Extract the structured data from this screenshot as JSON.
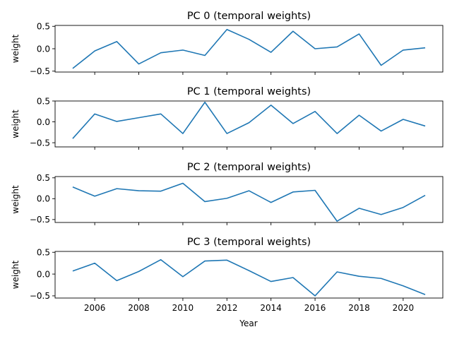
{
  "chart_data": {
    "type": "line",
    "xlabel": "Year",
    "x": [
      2005,
      2006,
      2007,
      2008,
      2009,
      2010,
      2011,
      2012,
      2013,
      2014,
      2015,
      2016,
      2017,
      2018,
      2019,
      2020,
      2021
    ],
    "xlim": [
      2004.2,
      2021.8
    ],
    "xticks": [
      2006,
      2008,
      2010,
      2012,
      2014,
      2016,
      2018,
      2020
    ],
    "xtick_labels": [
      "2006",
      "2008",
      "2010",
      "2012",
      "2014",
      "2016",
      "2018",
      "2020"
    ],
    "line_color": "#1f77b4",
    "grid": false,
    "panels": [
      {
        "title": "PC 0 (temporal weights)",
        "ylabel": "weight",
        "ylim": [
          -0.52,
          0.52
        ],
        "yticks": [
          0.5,
          0.0,
          -0.5
        ],
        "ytick_labels": [
          "0.5",
          "0.0",
          "−0.5"
        ],
        "values": [
          -0.44,
          -0.05,
          0.16,
          -0.34,
          -0.09,
          -0.03,
          -0.15,
          0.43,
          0.21,
          -0.08,
          0.39,
          0.0,
          0.04,
          0.33,
          -0.37,
          -0.03,
          0.02
        ]
      },
      {
        "title": "PC 1 (temporal weights)",
        "ylabel": "weight",
        "ylim": [
          -0.6,
          0.5
        ],
        "yticks": [
          0.5,
          0.0,
          -0.5
        ],
        "ytick_labels": [
          "0.5",
          "0.0",
          "−0.5"
        ],
        "values": [
          -0.4,
          0.19,
          0.01,
          0.1,
          0.19,
          -0.28,
          0.47,
          -0.28,
          -0.02,
          0.4,
          -0.04,
          0.25,
          -0.28,
          0.16,
          -0.22,
          0.06,
          -0.1
        ]
      },
      {
        "title": "PC 2 (temporal weights)",
        "ylabel": "weight",
        "ylim": [
          -0.57,
          0.53
        ],
        "yticks": [
          0.5,
          0.0,
          -0.5
        ],
        "ytick_labels": [
          "0.5",
          "0.0",
          "−0.5"
        ],
        "values": [
          0.28,
          0.06,
          0.24,
          0.19,
          0.18,
          0.37,
          -0.07,
          0.01,
          0.19,
          -0.09,
          0.16,
          0.2,
          -0.54,
          -0.23,
          -0.38,
          -0.21,
          0.08
        ]
      },
      {
        "title": "PC 3 (temporal weights)",
        "ylabel": "weight",
        "ylim": [
          -0.55,
          0.52
        ],
        "yticks": [
          0.5,
          0.0,
          -0.5
        ],
        "ytick_labels": [
          "0.5",
          "0.0",
          "−0.5"
        ],
        "values": [
          0.07,
          0.25,
          -0.15,
          0.06,
          0.33,
          -0.06,
          0.3,
          0.32,
          0.08,
          -0.17,
          -0.08,
          -0.5,
          0.05,
          -0.05,
          -0.1,
          -0.27,
          -0.47
        ]
      }
    ]
  }
}
